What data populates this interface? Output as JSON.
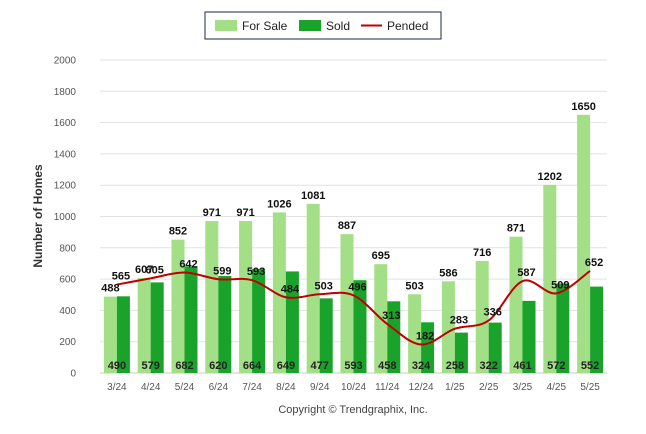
{
  "colors": {
    "for_sale": "#a3df86",
    "sold": "#1aa32a",
    "pended": "#c00000",
    "grid": "#e2e2e2"
  },
  "copyright": "Copyright © Trendgraphix, Inc.",
  "chart_data": {
    "type": "bar",
    "ylabel": "Number of Homes",
    "ylim": [
      0,
      2000
    ],
    "yticks": [
      0,
      200,
      400,
      600,
      800,
      1000,
      1200,
      1400,
      1600,
      1800,
      2000
    ],
    "grid": true,
    "legend_position": "top-center",
    "categories": [
      "3/24",
      "4/24",
      "5/24",
      "6/24",
      "7/24",
      "8/24",
      "9/24",
      "10/24",
      "11/24",
      "12/24",
      "1/25",
      "2/25",
      "3/25",
      "4/25",
      "5/25"
    ],
    "series": [
      {
        "name": "For Sale",
        "type": "bar",
        "values": [
          488,
          607,
          852,
          971,
          971,
          1026,
          1081,
          887,
          695,
          503,
          586,
          716,
          871,
          1202,
          1650
        ]
      },
      {
        "name": "Sold",
        "type": "bar",
        "values": [
          490,
          579,
          682,
          620,
          664,
          649,
          477,
          593,
          458,
          324,
          258,
          322,
          461,
          572,
          552
        ]
      },
      {
        "name": "Pended",
        "type": "line",
        "values": [
          565,
          605,
          642,
          599,
          593,
          484,
          503,
          496,
          313,
          182,
          283,
          336,
          587,
          509,
          652
        ]
      }
    ]
  }
}
